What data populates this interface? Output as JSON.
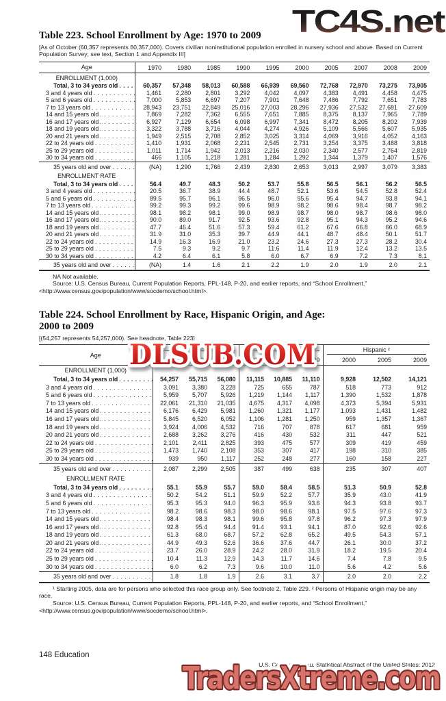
{
  "watermarks": {
    "top": "TC4S.net",
    "middle": "DLSUB.COM",
    "bottom": "TradersXtreme.com",
    "colors": {
      "top_dark": "#191919",
      "top_red": "#8c5247",
      "middle_red": "#c8161d",
      "middle_outline": "#ffffff",
      "bottom_fill": "#d7736b",
      "bottom_outline": "#7a2b26",
      "bottom_halo": "#ffffff"
    }
  },
  "table223": {
    "title": "Table 223. School Enrollment by Age: 1970 to 2009",
    "headnote": "[As of October (60,357 represents 60,357,000). Covers civilian noninstitutional population enrolled in nursery school and above. Based on Current Population Survey; see text, Section 1 and Appendix III]",
    "col_header": "Age",
    "years": [
      "1970",
      "1980",
      "1985",
      "1990",
      "1995",
      "2000",
      "2005",
      "2007",
      "2008",
      "2009"
    ],
    "sections": [
      {
        "label": "ENROLLMENT (1,000)",
        "rows": [
          {
            "label": "Total, 3 to 34 years old",
            "bold": true,
            "indent": true,
            "values": [
              "60,357",
              "57,348",
              "58,013",
              "60,588",
              "66,939",
              "69,560",
              "72,768",
              "72,970",
              "73,275",
              "73,905"
            ]
          },
          {
            "label": "3 and 4 years old",
            "values": [
              "1,461",
              "2,280",
              "2,801",
              "3,292",
              "4,042",
              "4,097",
              "4,383",
              "4,491",
              "4,458",
              "4,475"
            ]
          },
          {
            "label": "5 and 6 years old",
            "values": [
              "7,000",
              "5,853",
              "6,697",
              "7,207",
              "7,901",
              "7,648",
              "7,486",
              "7,792",
              "7,651",
              "7,783"
            ]
          },
          {
            "label": "7 to 13 years old",
            "values": [
              "28,943",
              "23,751",
              "22,849",
              "25,016",
              "27,003",
              "28,296",
              "27,936",
              "27,532",
              "27,681",
              "27,609"
            ]
          },
          {
            "label": "14 and 15 years old",
            "values": [
              "7,869",
              "7,282",
              "7,362",
              "6,555",
              "7,651",
              "7,885",
              "8,375",
              "8,137",
              "7,965",
              "7,789"
            ]
          },
          {
            "label": "16 and 17 years old",
            "values": [
              "6,927",
              "7,129",
              "6,654",
              "6,098",
              "6,997",
              "7,341",
              "8,472",
              "8,205",
              "8,202",
              "7,939"
            ]
          },
          {
            "label": "18 and 19 years old",
            "values": [
              "3,322",
              "3,788",
              "3,716",
              "4,044",
              "4,274",
              "4,926",
              "5,109",
              "5,566",
              "5,607",
              "5,935"
            ]
          },
          {
            "label": "20 and 21 years old",
            "values": [
              "1,949",
              "2,515",
              "2,708",
              "2,852",
              "3,025",
              "3,314",
              "4,069",
              "3,916",
              "4,052",
              "4,163"
            ]
          },
          {
            "label": "22 to 24 years old",
            "values": [
              "1,410",
              "1,931",
              "2,068",
              "2,231",
              "2,545",
              "2,731",
              "3,254",
              "3,375",
              "3,488",
              "3,818"
            ]
          },
          {
            "label": "25 to 29 years old",
            "values": [
              "1,011",
              "1,714",
              "1,942",
              "2,013",
              "2,216",
              "2,030",
              "2,340",
              "2,577",
              "2,764",
              "2,819"
            ]
          },
          {
            "label": "30 to 34 years old",
            "values": [
              "466",
              "1,105",
              "1,218",
              "1,281",
              "1,284",
              "1,292",
              "1,344",
              "1,379",
              "1,407",
              "1,576"
            ]
          },
          {
            "label": "35 years old and over",
            "indent": true,
            "topline": true,
            "values": [
              "(NA)",
              "1,290",
              "1,766",
              "2,439",
              "2,830",
              "2,653",
              "3,013",
              "2,997",
              "3,079",
              "3,383"
            ]
          }
        ]
      },
      {
        "label": "ENROLLMENT RATE",
        "rows": [
          {
            "label": "Total, 3 to 34 years old",
            "bold": true,
            "indent": true,
            "values": [
              "56.4",
              "49.7",
              "48.3",
              "50.2",
              "53.7",
              "55.8",
              "56.5",
              "56.1",
              "56.2",
              "56.5"
            ]
          },
          {
            "label": "3 and 4 years old",
            "values": [
              "20.5",
              "36.7",
              "38.9",
              "44.4",
              "48.7",
              "52.1",
              "53.6",
              "54.5",
              "52.8",
              "52.4"
            ]
          },
          {
            "label": "5 and 6 years old",
            "values": [
              "89.5",
              "95.7",
              "96.1",
              "96.5",
              "96.0",
              "95.6",
              "95.4",
              "94.7",
              "93.8",
              "94.1"
            ]
          },
          {
            "label": "7 to 13 years old",
            "values": [
              "99.2",
              "99.3",
              "99.2",
              "99.6",
              "98.9",
              "98.2",
              "98.6",
              "98.4",
              "98.7",
              "98.2"
            ]
          },
          {
            "label": "14 and 15 years old",
            "values": [
              "98.1",
              "98.2",
              "98.1",
              "99.0",
              "98.9",
              "98.7",
              "98.0",
              "98.7",
              "98.6",
              "98.0"
            ]
          },
          {
            "label": "16 and 17 years old",
            "values": [
              "90.0",
              "89.0",
              "91.7",
              "92.5",
              "93.6",
              "92.8",
              "95.1",
              "94.3",
              "95.2",
              "94.6"
            ]
          },
          {
            "label": "18 and 19 years old",
            "values": [
              "47.7",
              "46.4",
              "51.6",
              "57.3",
              "59.4",
              "61.2",
              "67.6",
              "66.8",
              "66.0",
              "68.9"
            ]
          },
          {
            "label": "20 and 21 years old",
            "values": [
              "31.9",
              "31.0",
              "35.3",
              "39.7",
              "44.9",
              "44.1",
              "48.7",
              "48.4",
              "50.1",
              "51.7"
            ]
          },
          {
            "label": "22 to 24 years old",
            "values": [
              "14.9",
              "16.3",
              "16.9",
              "21.0",
              "23.2",
              "24.6",
              "27.3",
              "27.3",
              "28.2",
              "30.4"
            ]
          },
          {
            "label": "25 to 29 years old",
            "values": [
              "7.5",
              "9.3",
              "9.2",
              "9.7",
              "11.6",
              "11.4",
              "11.9",
              "12.4",
              "13.2",
              "13.5"
            ]
          },
          {
            "label": "30 to 34 years old",
            "values": [
              "4.2",
              "6.4",
              "6.1",
              "5.8",
              "6.0",
              "6.7",
              "6.9",
              "7.2",
              "7.3",
              "8.1"
            ]
          },
          {
            "label": "35 years old and over",
            "indent": true,
            "topline": true,
            "values": [
              "(NA)",
              "1.4",
              "1.6",
              "2.1",
              "2.2",
              "1.9",
              "2.0",
              "1.9",
              "2.0",
              "2.1"
            ]
          }
        ]
      }
    ],
    "note": "NA Not available.",
    "source_line1": "Source: U.S. Census Bureau, Current Population Reports, PPL-148, P-20, and earlier reports, and “School Enrollment,”",
    "source_line2": "<http://www.census.gov/population/www/socdemo/school.html>."
  },
  "table224": {
    "title_line1": "Table 224. School Enrollment by Race, Hispanic Origin, and Age:",
    "title_line2": "2000 to 2009",
    "headnote": "[(54,257 represents 54,257,000). See headnote, Table 223]",
    "col_header": "Age",
    "groups": [
      {
        "label": "",
        "years": [
          "2000",
          "2005",
          "2009"
        ]
      },
      {
        "label": "",
        "years": [
          "2000",
          "2005",
          "2009"
        ]
      },
      {
        "label": "Hispanic ²",
        "years": [
          "2000",
          "2005",
          "2009"
        ]
      }
    ],
    "sections": [
      {
        "label": "ENROLLMENT (1,000)",
        "rows": [
          {
            "label": "Total, 3 to 34 years old",
            "bold": true,
            "indent": true,
            "values": [
              "54,257",
              "55,715",
              "56,080",
              "11,115",
              "10,885",
              "11,110",
              "9,928",
              "12,502",
              "14,121"
            ]
          },
          {
            "label": "3 and 4 years old",
            "values": [
              "3,091",
              "3,380",
              "3,228",
              "725",
              "655",
              "787",
              "518",
              "773",
              "912"
            ]
          },
          {
            "label": "5 and 6 years old",
            "values": [
              "5,959",
              "5,707",
              "5,926",
              "1,219",
              "1,144",
              "1,117",
              "1,390",
              "1,532",
              "1,878"
            ]
          },
          {
            "label": "7 to 13 years old",
            "values": [
              "22,061",
              "21,310",
              "21,035",
              "4,675",
              "4,317",
              "4,098",
              "4,373",
              "5,394",
              "5,931"
            ]
          },
          {
            "label": "14 and 15 years old",
            "values": [
              "6,176",
              "6,429",
              "5,981",
              "1,260",
              "1,321",
              "1,177",
              "1,093",
              "1,431",
              "1,482"
            ]
          },
          {
            "label": "16 and 17 years old",
            "values": [
              "5,845",
              "6,520",
              "6,052",
              "1,106",
              "1,281",
              "1,250",
              "959",
              "1,357",
              "1,367"
            ]
          },
          {
            "label": "18 and 19 years old",
            "values": [
              "3,924",
              "4,006",
              "4,532",
              "716",
              "707",
              "878",
              "617",
              "681",
              "959"
            ]
          },
          {
            "label": "20 and 21 years old",
            "values": [
              "2,688",
              "3,262",
              "3,276",
              "416",
              "430",
              "532",
              "311",
              "447",
              "521"
            ]
          },
          {
            "label": "22 to 24 years old",
            "values": [
              "2,101",
              "2,411",
              "2,825",
              "393",
              "475",
              "577",
              "309",
              "419",
              "459"
            ]
          },
          {
            "label": "25 to 29 years old",
            "values": [
              "1,473",
              "1,740",
              "2,108",
              "353",
              "307",
              "417",
              "198",
              "310",
              "385"
            ]
          },
          {
            "label": "30 to 34 years old",
            "values": [
              "939",
              "950",
              "1,117",
              "252",
              "248",
              "277",
              "160",
              "158",
              "227"
            ]
          },
          {
            "label": "35 years old and over",
            "indent": true,
            "topline": true,
            "values": [
              "2,087",
              "2,299",
              "2,505",
              "387",
              "499",
              "638",
              "235",
              "307",
              "407"
            ]
          }
        ]
      },
      {
        "label": "ENROLLMENT RATE",
        "rows": [
          {
            "label": "Total, 3 to 34 years old",
            "bold": true,
            "indent": true,
            "values": [
              "55.1",
              "55.9",
              "55.7",
              "59.0",
              "58.4",
              "58.5",
              "51.3",
              "50.9",
              "52.8"
            ]
          },
          {
            "label": "3 and 4 years old",
            "values": [
              "50.2",
              "54.2",
              "51.1",
              "59.9",
              "52.2",
              "57.7",
              "35.9",
              "43.0",
              "41.9"
            ]
          },
          {
            "label": "5 and 6 years old",
            "values": [
              "95.3",
              "95.3",
              "94.0",
              "96.3",
              "95.9",
              "93.6",
              "94.3",
              "93.8",
              "93.7"
            ]
          },
          {
            "label": "7 to 13 years old",
            "values": [
              "98.2",
              "98.6",
              "98.3",
              "98.0",
              "98.6",
              "98.1",
              "97.5",
              "97.6",
              "97.3"
            ]
          },
          {
            "label": "14 and 15 years old",
            "values": [
              "98.4",
              "98.3",
              "98.1",
              "99.6",
              "95.8",
              "97.8",
              "96.2",
              "97.3",
              "97.9"
            ]
          },
          {
            "label": "16 and 17 years old",
            "values": [
              "92.8",
              "95.4",
              "94.4",
              "91.4",
              "93.1",
              "94.1",
              "87.0",
              "92.6",
              "92.6"
            ]
          },
          {
            "label": "18 and 19 years old",
            "values": [
              "61.3",
              "68.0",
              "68.7",
              "57.2",
              "62.8",
              "65.2",
              "49.5",
              "54.3",
              "57.1"
            ]
          },
          {
            "label": "20 and 21 years old",
            "values": [
              "44.9",
              "49.3",
              "52.6",
              "36.6",
              "37.6",
              "44.7",
              "26.1",
              "30.0",
              "37.2"
            ]
          },
          {
            "label": "22 to 24 years old",
            "values": [
              "23.7",
              "26.0",
              "28.9",
              "24.2",
              "28.0",
              "31.9",
              "18.2",
              "19.5",
              "20.4"
            ]
          },
          {
            "label": "25 to 29 years old",
            "values": [
              "10.4",
              "11.3",
              "12.9",
              "14.3",
              "11.7",
              "14.6",
              "7.4",
              "7.8",
              "9.5"
            ]
          },
          {
            "label": "30 to 34 years old",
            "values": [
              "6.0",
              "6.2",
              "7.3",
              "9.6",
              "10.0",
              "11.0",
              "5.6",
              "4.2",
              "5.6"
            ]
          },
          {
            "label": "35 years old and over",
            "indent": true,
            "topline": true,
            "values": [
              "1.8",
              "1.8",
              "1.9",
              "2.6",
              "3.1",
              "3.7",
              "2.0",
              "2.0",
              "2.2"
            ]
          }
        ]
      }
    ],
    "footnote": "¹ Starting 2005, data are for persons who selected this race group only. See footnote 2, Table 229. ² Persons of Hispanic origin may be any race.",
    "source_line1": "Source: U.S. Census Bureau, Current Population Reports, PPL-148, P-20, and earlier reports, and “School Enrollment,”",
    "source_line2": "<http://www.census.gov/population/www/socdemo/school.html>."
  },
  "footer": {
    "left": "148  Education",
    "right": "U.S. Census Bureau, Statistical Abstract of the United States: 2012"
  }
}
